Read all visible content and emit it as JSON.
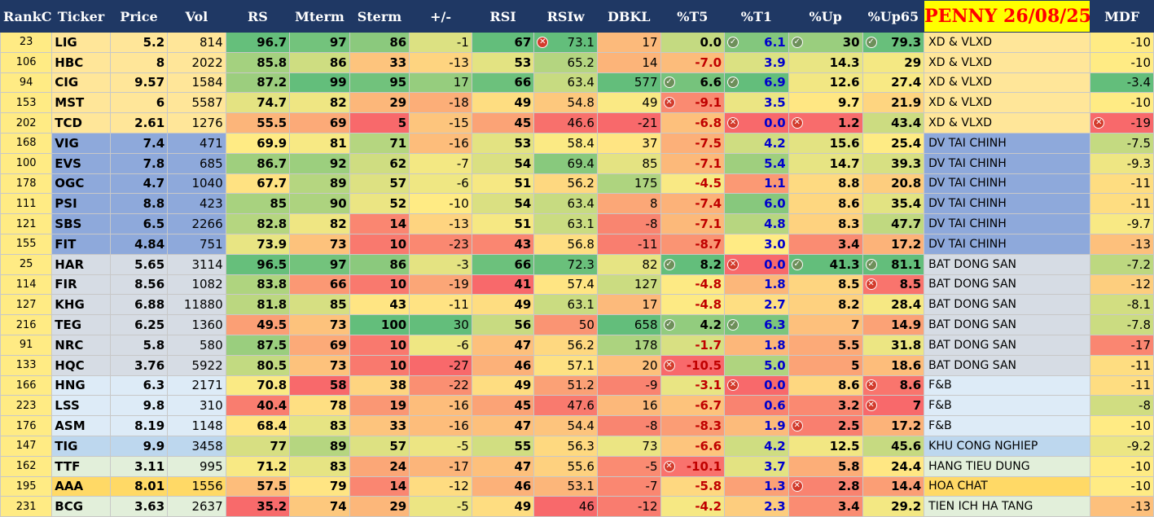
{
  "headers": [
    "RankC",
    "Ticker",
    "Price",
    "Vol",
    "RS",
    "Mterm",
    "Sterm",
    "+/-",
    "RSI",
    "RSIw",
    "DBKL",
    "%T5",
    "%T1",
    "%Up",
    "%Up65",
    "PENNY 26/08/25",
    "MDF"
  ],
  "rows": [
    {
      "rank": "23",
      "ticker": "LIG",
      "price": "5.2",
      "vol": "814",
      "rs": "96.7",
      "mterm": "97",
      "sterm": "86",
      "pm": "-1",
      "rsi": "67",
      "rsiw": "73.1",
      "dbkl": "17",
      "t5": "0.0",
      "t1": "6.1",
      "up": "30",
      "up65": "79.3",
      "group": "XD & VLXD",
      "mdf": "-10"
    },
    {
      "rank": "106",
      "ticker": "HBC",
      "price": "8",
      "vol": "2022",
      "rs": "85.8",
      "mterm": "86",
      "sterm": "33",
      "pm": "-13",
      "rsi": "53",
      "rsiw": "65.2",
      "dbkl": "14",
      "t5": "-7.0",
      "t1": "3.9",
      "up": "14.3",
      "up65": "29",
      "group": "XD & VLXD",
      "mdf": "-10"
    },
    {
      "rank": "94",
      "ticker": "CIG",
      "price": "9.57",
      "vol": "1584",
      "rs": "87.2",
      "mterm": "99",
      "sterm": "95",
      "pm": "17",
      "rsi": "66",
      "rsiw": "63.4",
      "dbkl": "577",
      "t5": "6.6",
      "t1": "6.9",
      "up": "12.6",
      "up65": "27.4",
      "group": "XD & VLXD",
      "mdf": "-3.4"
    },
    {
      "rank": "153",
      "ticker": "MST",
      "price": "6",
      "vol": "5587",
      "rs": "74.7",
      "mterm": "82",
      "sterm": "29",
      "pm": "-18",
      "rsi": "49",
      "rsiw": "54.8",
      "dbkl": "49",
      "t5": "-9.1",
      "t1": "3.5",
      "up": "9.7",
      "up65": "21.9",
      "group": "XD & VLXD",
      "mdf": "-10"
    },
    {
      "rank": "202",
      "ticker": "TCD",
      "price": "2.61",
      "vol": "1276",
      "rs": "55.5",
      "mterm": "69",
      "sterm": "5",
      "pm": "-15",
      "rsi": "45",
      "rsiw": "46.6",
      "dbkl": "-21",
      "t5": "-6.8",
      "t1": "0.0",
      "up": "1.2",
      "up65": "43.4",
      "group": "XD & VLXD",
      "mdf": "-19"
    },
    {
      "rank": "168",
      "ticker": "VIG",
      "price": "7.4",
      "vol": "471",
      "rs": "69.9",
      "mterm": "81",
      "sterm": "71",
      "pm": "-16",
      "rsi": "53",
      "rsiw": "58.4",
      "dbkl": "37",
      "t5": "-7.5",
      "t1": "4.2",
      "up": "15.6",
      "up65": "25.4",
      "group": "DV TAI CHINH",
      "mdf": "-7.5"
    },
    {
      "rank": "100",
      "ticker": "EVS",
      "price": "7.8",
      "vol": "685",
      "rs": "86.7",
      "mterm": "92",
      "sterm": "62",
      "pm": "-7",
      "rsi": "54",
      "rsiw": "69.4",
      "dbkl": "85",
      "t5": "-7.1",
      "t1": "5.4",
      "up": "14.7",
      "up65": "39.3",
      "group": "DV TAI CHINH",
      "mdf": "-9.3"
    },
    {
      "rank": "178",
      "ticker": "OGC",
      "price": "4.7",
      "vol": "1040",
      "rs": "67.7",
      "mterm": "89",
      "sterm": "57",
      "pm": "-6",
      "rsi": "51",
      "rsiw": "56.2",
      "dbkl": "175",
      "t5": "-4.5",
      "t1": "1.1",
      "up": "8.8",
      "up65": "20.8",
      "group": "DV TAI CHINH",
      "mdf": "-11"
    },
    {
      "rank": "111",
      "ticker": "PSI",
      "price": "8.8",
      "vol": "423",
      "rs": "85",
      "mterm": "90",
      "sterm": "52",
      "pm": "-10",
      "rsi": "54",
      "rsiw": "63.4",
      "dbkl": "8",
      "t5": "-7.4",
      "t1": "6.0",
      "up": "8.6",
      "up65": "35.4",
      "group": "DV TAI CHINH",
      "mdf": "-11"
    },
    {
      "rank": "121",
      "ticker": "SBS",
      "price": "6.5",
      "vol": "2266",
      "rs": "82.8",
      "mterm": "82",
      "sterm": "14",
      "pm": "-13",
      "rsi": "51",
      "rsiw": "63.1",
      "dbkl": "-8",
      "t5": "-7.1",
      "t1": "4.8",
      "up": "8.3",
      "up65": "47.7",
      "group": "DV TAI CHINH",
      "mdf": "-9.7"
    },
    {
      "rank": "155",
      "ticker": "FIT",
      "price": "4.84",
      "vol": "751",
      "rs": "73.9",
      "mterm": "73",
      "sterm": "10",
      "pm": "-23",
      "rsi": "43",
      "rsiw": "56.8",
      "dbkl": "-11",
      "t5": "-8.7",
      "t1": "3.0",
      "up": "3.4",
      "up65": "17.2",
      "group": "DV TAI CHINH",
      "mdf": "-13"
    },
    {
      "rank": "25",
      "ticker": "HAR",
      "price": "5.65",
      "vol": "3114",
      "rs": "96.5",
      "mterm": "97",
      "sterm": "86",
      "pm": "-3",
      "rsi": "66",
      "rsiw": "72.3",
      "dbkl": "82",
      "t5": "8.2",
      "t1": "0.0",
      "up": "41.3",
      "up65": "81.1",
      "group": "BAT DONG SAN",
      "mdf": "-7.2"
    },
    {
      "rank": "114",
      "ticker": "FIR",
      "price": "8.56",
      "vol": "1082",
      "rs": "83.8",
      "mterm": "66",
      "sterm": "10",
      "pm": "-19",
      "rsi": "41",
      "rsiw": "57.4",
      "dbkl": "127",
      "t5": "-4.8",
      "t1": "1.8",
      "up": "8.5",
      "up65": "8.5",
      "group": "BAT DONG SAN",
      "mdf": "-12"
    },
    {
      "rank": "127",
      "ticker": "KHG",
      "price": "6.88",
      "vol": "11880",
      "rs": "81.8",
      "mterm": "85",
      "sterm": "43",
      "pm": "-11",
      "rsi": "49",
      "rsiw": "63.1",
      "dbkl": "17",
      "t5": "-4.8",
      "t1": "2.7",
      "up": "8.2",
      "up65": "28.4",
      "group": "BAT DONG SAN",
      "mdf": "-8.1"
    },
    {
      "rank": "216",
      "ticker": "TEG",
      "price": "6.25",
      "vol": "1360",
      "rs": "49.5",
      "mterm": "73",
      "sterm": "100",
      "pm": "30",
      "rsi": "56",
      "rsiw": "50",
      "dbkl": "658",
      "t5": "4.2",
      "t1": "6.3",
      "up": "7",
      "up65": "14.9",
      "group": "BAT DONG SAN",
      "mdf": "-7.8"
    },
    {
      "rank": "91",
      "ticker": "NRC",
      "price": "5.8",
      "vol": "580",
      "rs": "87.5",
      "mterm": "69",
      "sterm": "10",
      "pm": "-6",
      "rsi": "47",
      "rsiw": "56.2",
      "dbkl": "178",
      "t5": "-1.7",
      "t1": "1.8",
      "up": "5.5",
      "up65": "31.8",
      "group": "BAT DONG SAN",
      "mdf": "-17"
    },
    {
      "rank": "133",
      "ticker": "HQC",
      "price": "3.76",
      "vol": "5922",
      "rs": "80.5",
      "mterm": "73",
      "sterm": "10",
      "pm": "-27",
      "rsi": "46",
      "rsiw": "57.1",
      "dbkl": "20",
      "t5": "-10.5",
      "t1": "5.0",
      "up": "5",
      "up65": "18.6",
      "group": "BAT DONG SAN",
      "mdf": "-11"
    },
    {
      "rank": "166",
      "ticker": "HNG",
      "price": "6.3",
      "vol": "2171",
      "rs": "70.8",
      "mterm": "58",
      "sterm": "38",
      "pm": "-22",
      "rsi": "49",
      "rsiw": "51.2",
      "dbkl": "-9",
      "t5": "-3.1",
      "t1": "0.0",
      "up": "8.6",
      "up65": "8.6",
      "group": "F&B",
      "mdf": "-11"
    },
    {
      "rank": "223",
      "ticker": "LSS",
      "price": "9.8",
      "vol": "310",
      "rs": "40.4",
      "mterm": "78",
      "sterm": "19",
      "pm": "-16",
      "rsi": "45",
      "rsiw": "47.6",
      "dbkl": "16",
      "t5": "-6.7",
      "t1": "0.6",
      "up": "3.2",
      "up65": "7",
      "group": "F&B",
      "mdf": "-8"
    },
    {
      "rank": "176",
      "ticker": "ASM",
      "price": "8.19",
      "vol": "1148",
      "rs": "68.4",
      "mterm": "83",
      "sterm": "33",
      "pm": "-16",
      "rsi": "47",
      "rsiw": "54.4",
      "dbkl": "-8",
      "t5": "-8.3",
      "t1": "1.9",
      "up": "2.5",
      "up65": "17.2",
      "group": "F&B",
      "mdf": "-10"
    },
    {
      "rank": "147",
      "ticker": "TIG",
      "price": "9.9",
      "vol": "3458",
      "rs": "77",
      "mterm": "89",
      "sterm": "57",
      "pm": "-5",
      "rsi": "55",
      "rsiw": "56.3",
      "dbkl": "73",
      "t5": "-6.6",
      "t1": "4.2",
      "up": "12.5",
      "up65": "45.6",
      "group": "KHU CONG NGHIEP",
      "mdf": "-9.2"
    },
    {
      "rank": "162",
      "ticker": "TTF",
      "price": "3.11",
      "vol": "995",
      "rs": "71.2",
      "mterm": "83",
      "sterm": "24",
      "pm": "-17",
      "rsi": "47",
      "rsiw": "55.6",
      "dbkl": "-5",
      "t5": "-10.1",
      "t1": "3.7",
      "up": "5.8",
      "up65": "24.4",
      "group": "HANG TIEU DUNG",
      "mdf": "-10"
    },
    {
      "rank": "195",
      "ticker": "AAA",
      "price": "8.01",
      "vol": "1556",
      "rs": "57.5",
      "mterm": "79",
      "sterm": "14",
      "pm": "-12",
      "rsi": "46",
      "rsiw": "53.1",
      "dbkl": "-7",
      "t5": "-5.8",
      "t1": "1.3",
      "up": "2.8",
      "up65": "14.4",
      "group": "HOA CHAT",
      "mdf": "-10"
    },
    {
      "rank": "231",
      "ticker": "BCG",
      "price": "3.63",
      "vol": "2637",
      "rs": "35.2",
      "mterm": "74",
      "sterm": "29",
      "pm": "-5",
      "rsi": "49",
      "rsiw": "46",
      "dbkl": "-12",
      "t5": "-4.2",
      "t1": "2.3",
      "up": "3.4",
      "up65": "29.2",
      "group": "TIEN ICH HA TANG",
      "mdf": "-13"
    }
  ],
  "markers": [
    {
      "row": 0,
      "col": "rsiw",
      "type": "x"
    },
    {
      "row": 0,
      "col": "t1",
      "type": "check"
    },
    {
      "row": 0,
      "col": "up",
      "type": "check"
    },
    {
      "row": 0,
      "col": "up65",
      "type": "check"
    },
    {
      "row": 2,
      "col": "t5",
      "type": "check"
    },
    {
      "row": 2,
      "col": "t1",
      "type": "check"
    },
    {
      "row": 3,
      "col": "t5",
      "type": "x"
    },
    {
      "row": 4,
      "col": "t1",
      "type": "x"
    },
    {
      "row": 4,
      "col": "up",
      "type": "x"
    },
    {
      "row": 4,
      "col": "mdf",
      "type": "x"
    },
    {
      "row": 11,
      "col": "t5",
      "type": "check"
    },
    {
      "row": 11,
      "col": "t1",
      "type": "x"
    },
    {
      "row": 11,
      "col": "up",
      "type": "check"
    },
    {
      "row": 11,
      "col": "up65",
      "type": "check"
    },
    {
      "row": 12,
      "col": "up65",
      "type": "x"
    },
    {
      "row": 14,
      "col": "t5",
      "type": "check"
    },
    {
      "row": 14,
      "col": "t1",
      "type": "check"
    },
    {
      "row": 16,
      "col": "t5",
      "type": "x"
    },
    {
      "row": 17,
      "col": "t1",
      "type": "x"
    },
    {
      "row": 17,
      "col": "up65",
      "type": "x"
    },
    {
      "row": 18,
      "col": "up65",
      "type": "x"
    },
    {
      "row": 19,
      "col": "up",
      "type": "x"
    },
    {
      "row": 21,
      "col": "t5",
      "type": "x"
    },
    {
      "row": 22,
      "col": "up",
      "type": "x"
    }
  ],
  "colors": {
    "header_bg": "#1f3864",
    "penny_bg": "#ffff00",
    "penny_text": "#ff0000",
    "group_bg": {
      "XD & VLXD": "#ffe699",
      "DV TAI CHINH": "#8ea9db",
      "BAT DONG SAN": "#d6dce4",
      "F&B": "#ddebf7",
      "KHU CONG NGHIEP": "#bdd7ee",
      "HANG TIEU DUNG": "#e2efda",
      "HOA CHAT": "#ffd966",
      "TIEN ICH HA TANG": "#e2efda"
    }
  }
}
